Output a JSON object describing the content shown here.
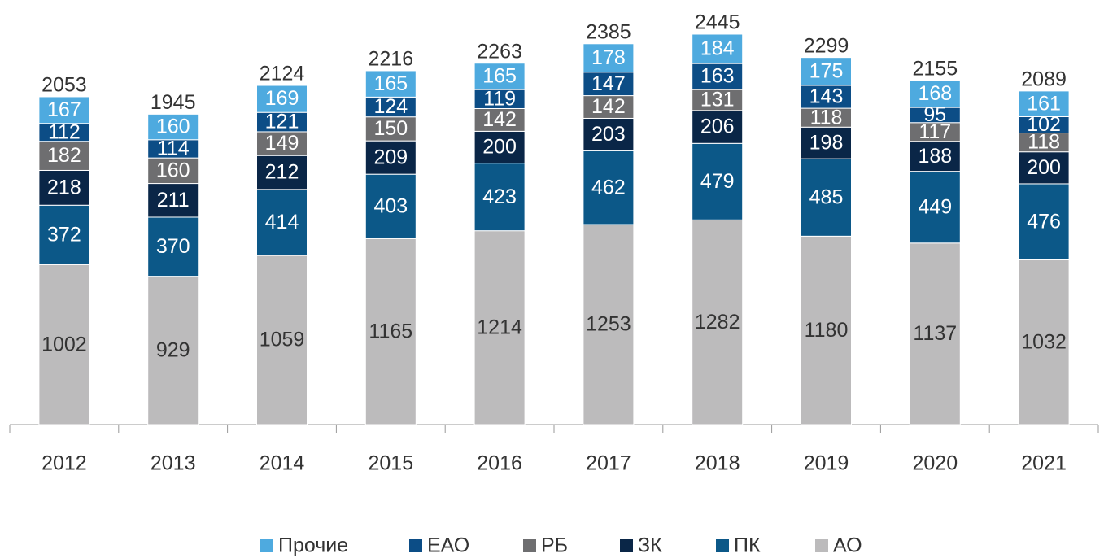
{
  "chart_data": {
    "type": "stacked_bar",
    "categories": [
      "2012",
      "2013",
      "2014",
      "2015",
      "2016",
      "2017",
      "2018",
      "2019",
      "2020",
      "2021"
    ],
    "series": [
      {
        "name": "АО",
        "color": "#bcbbbc",
        "values": [
          1002,
          929,
          1059,
          1165,
          1214,
          1253,
          1282,
          1180,
          1137,
          1032
        ]
      },
      {
        "name": "ПК",
        "color": "#0c5888",
        "values": [
          372,
          370,
          414,
          403,
          423,
          462,
          479,
          485,
          449,
          476
        ]
      },
      {
        "name": "ЗК",
        "color": "#0a2647",
        "values": [
          218,
          211,
          212,
          209,
          200,
          203,
          206,
          198,
          188,
          200
        ]
      },
      {
        "name": "РБ",
        "color": "#6e6e70",
        "values": [
          182,
          160,
          149,
          150,
          142,
          142,
          131,
          118,
          117,
          118
        ]
      },
      {
        "name": "ЕАО",
        "color": "#0c4d86",
        "values": [
          112,
          114,
          121,
          124,
          119,
          147,
          163,
          143,
          95,
          102
        ]
      },
      {
        "name": "Прочие",
        "color": "#4eaadf",
        "values": [
          167,
          160,
          169,
          165,
          165,
          178,
          184,
          175,
          168,
          161
        ]
      }
    ],
    "totals": [
      2053,
      1945,
      2124,
      2216,
      2263,
      2385,
      2445,
      2299,
      2155,
      2089
    ]
  }
}
